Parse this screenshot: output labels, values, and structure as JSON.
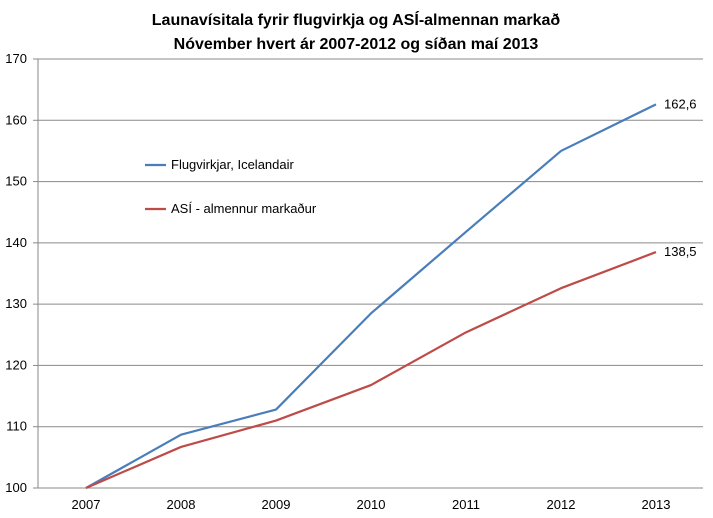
{
  "chart_data": {
    "type": "line",
    "title": "Launavísitala fyrir flugvirkja og ASÍ-almennan markað",
    "subtitle": "Nóvember hvert ár 2007-2012 og síðan maí 2013",
    "categories": [
      "2007",
      "2008",
      "2009",
      "2010",
      "2011",
      "2012",
      "2013"
    ],
    "ylim": [
      100,
      170
    ],
    "yticks": [
      "100",
      "110",
      "120",
      "130",
      "140",
      "150",
      "160",
      "170"
    ],
    "grid": true,
    "legend_position": "left",
    "series": [
      {
        "name": "Flugvirkjar, Icelandair",
        "color": "#4a7ebb",
        "values": [
          100,
          108.7,
          112.8,
          128.5,
          141.8,
          155,
          162.6
        ],
        "end_label": "162,6"
      },
      {
        "name": "ASÍ - almennur markaður",
        "color": "#be4b48",
        "values": [
          100,
          106.7,
          111.0,
          116.8,
          125.4,
          132.6,
          138.5
        ],
        "end_label": "138,5"
      }
    ]
  }
}
